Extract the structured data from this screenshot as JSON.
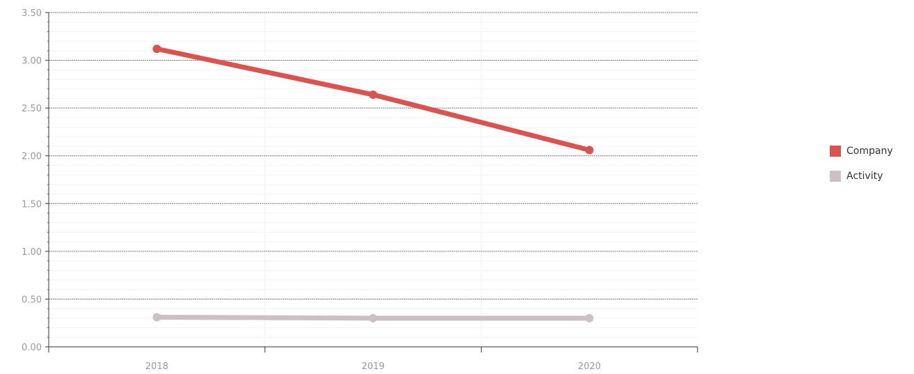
{
  "chart_data": {
    "type": "line",
    "title": "",
    "xlabel": "",
    "ylabel": "",
    "categories": [
      "2018",
      "2019",
      "2020"
    ],
    "ylim": [
      0,
      3.5
    ],
    "yticks": [
      "0.00",
      "0.50",
      "1.00",
      "1.50",
      "2.00",
      "2.50",
      "3.00",
      "3.50"
    ],
    "ytick_values": [
      0,
      0.5,
      1.0,
      1.5,
      2.0,
      2.5,
      3.0,
      3.5
    ],
    "grid": true,
    "legend_position": "right",
    "series": [
      {
        "name": "Company",
        "color": "#d9534f",
        "values": [
          3.12,
          2.64,
          2.06
        ]
      },
      {
        "name": "Activity",
        "color": "#cdbfc3",
        "values": [
          0.31,
          0.3,
          0.3
        ]
      }
    ]
  }
}
